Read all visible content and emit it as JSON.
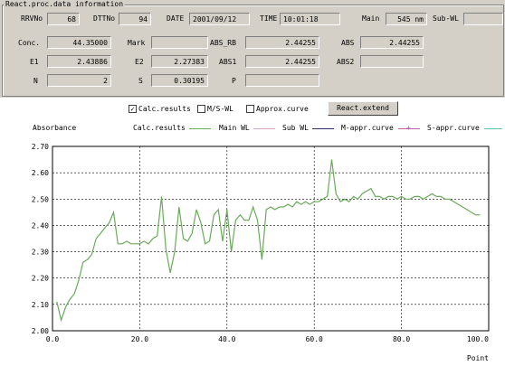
{
  "panel_title": "React.proc.data information",
  "fields": {
    "rrvno": {
      "label": "RRVNo",
      "value": "68"
    },
    "dttno": {
      "label": "DTTNo",
      "value": "94"
    },
    "date": {
      "label": "DATE",
      "value": "2001/09/12"
    },
    "time": {
      "label": "TIME",
      "value": "10:01:18"
    },
    "main": {
      "label": "Main",
      "value": "545 nm"
    },
    "subwl": {
      "label": "Sub-WL",
      "value": ""
    },
    "conc": {
      "label": "Conc.",
      "value": "44.35000"
    },
    "mark": {
      "label": "Mark",
      "value": ""
    },
    "abs_rb": {
      "label": "ABS_RB",
      "value": "2.44255"
    },
    "abs": {
      "label": "ABS",
      "value": "2.44255"
    },
    "e1": {
      "label": "E1",
      "value": "2.43886"
    },
    "e2": {
      "label": "E2",
      "value": "2.27383"
    },
    "abs1": {
      "label": "ABS1",
      "value": "2.44255"
    },
    "abs2": {
      "label": "ABS2",
      "value": ""
    },
    "n": {
      "label": "N",
      "value": "2"
    },
    "s": {
      "label": "S",
      "value": "0.30195"
    },
    "p": {
      "label": "P",
      "value": ""
    }
  },
  "options": {
    "calc_results": {
      "label": "Calc.results",
      "checked": true,
      "mark": "✓"
    },
    "ms_wl": {
      "label": "M/S-WL",
      "checked": false
    },
    "approx_curve": {
      "label": "Approx.curve",
      "checked": false
    },
    "react_extend": "React.extend"
  },
  "legend": {
    "ylabel": "Absorbance",
    "items": [
      {
        "label": "Calc.results",
        "color": "#6aaa5a"
      },
      {
        "label": "Main WL",
        "color": "#d8a8c8"
      },
      {
        "label": "Sub WL",
        "color": "#303070"
      },
      {
        "label": "M-appr.curve",
        "color": "#c060b0"
      },
      {
        "label": "S-appr.curve",
        "color": "#60c0b0"
      }
    ]
  },
  "chart_data": {
    "type": "line",
    "xlabel": "Point",
    "ylabel": "Absorbance",
    "xlim": [
      0,
      100
    ],
    "ylim": [
      2.0,
      2.7
    ],
    "xticks": [
      "0.0",
      "20.0",
      "40.0",
      "60.0",
      "80.0",
      "100.0"
    ],
    "yticks": [
      "2.00",
      "2.10",
      "2.20",
      "2.30",
      "2.40",
      "2.50",
      "2.60",
      "2.70"
    ],
    "grid": true,
    "series": [
      {
        "name": "Calc.results",
        "color": "#6aaa5a",
        "points": [
          [
            1,
            2.11
          ],
          [
            2,
            2.04
          ],
          [
            3,
            2.09
          ],
          [
            4,
            2.12
          ],
          [
            5,
            2.14
          ],
          [
            6,
            2.19
          ],
          [
            7,
            2.26
          ],
          [
            8,
            2.27
          ],
          [
            9,
            2.29
          ],
          [
            10,
            2.35
          ],
          [
            11,
            2.37
          ],
          [
            12,
            2.39
          ],
          [
            13,
            2.41
          ],
          [
            14,
            2.45
          ],
          [
            15,
            2.33
          ],
          [
            16,
            2.33
          ],
          [
            17,
            2.34
          ],
          [
            18,
            2.33
          ],
          [
            19,
            2.33
          ],
          [
            20,
            2.33
          ],
          [
            21,
            2.34
          ],
          [
            22,
            2.33
          ],
          [
            23,
            2.35
          ],
          [
            24,
            2.36
          ],
          [
            25,
            2.51
          ],
          [
            26,
            2.31
          ],
          [
            27,
            2.22
          ],
          [
            28,
            2.3
          ],
          [
            29,
            2.47
          ],
          [
            30,
            2.35
          ],
          [
            31,
            2.34
          ],
          [
            32,
            2.37
          ],
          [
            33,
            2.46
          ],
          [
            34,
            2.41
          ],
          [
            35,
            2.33
          ],
          [
            36,
            2.34
          ],
          [
            37,
            2.44
          ],
          [
            38,
            2.46
          ],
          [
            39,
            2.34
          ],
          [
            40,
            2.46
          ],
          [
            41,
            2.3
          ],
          [
            42,
            2.42
          ],
          [
            43,
            2.44
          ],
          [
            44,
            2.42
          ],
          [
            45,
            2.42
          ],
          [
            46,
            2.47
          ],
          [
            47,
            2.42
          ],
          [
            48,
            2.27
          ],
          [
            49,
            2.46
          ],
          [
            50,
            2.47
          ],
          [
            51,
            2.46
          ],
          [
            52,
            2.47
          ],
          [
            53,
            2.47
          ],
          [
            54,
            2.48
          ],
          [
            55,
            2.47
          ],
          [
            56,
            2.49
          ],
          [
            57,
            2.48
          ],
          [
            58,
            2.49
          ],
          [
            59,
            2.48
          ],
          [
            60,
            2.49
          ],
          [
            61,
            2.49
          ],
          [
            62,
            2.5
          ],
          [
            63,
            2.51
          ],
          [
            64,
            2.65
          ],
          [
            65,
            2.52
          ],
          [
            66,
            2.49
          ],
          [
            67,
            2.5
          ],
          [
            68,
            2.49
          ],
          [
            69,
            2.51
          ],
          [
            70,
            2.5
          ],
          [
            71,
            2.52
          ],
          [
            72,
            2.53
          ],
          [
            73,
            2.54
          ],
          [
            74,
            2.51
          ],
          [
            75,
            2.51
          ],
          [
            76,
            2.5
          ],
          [
            77,
            2.51
          ],
          [
            78,
            2.51
          ],
          [
            79,
            2.5
          ],
          [
            80,
            2.51
          ],
          [
            81,
            2.5
          ],
          [
            82,
            2.5
          ],
          [
            83,
            2.51
          ],
          [
            84,
            2.51
          ],
          [
            85,
            2.5
          ],
          [
            86,
            2.51
          ],
          [
            87,
            2.52
          ],
          [
            88,
            2.51
          ],
          [
            89,
            2.51
          ],
          [
            90,
            2.5
          ],
          [
            91,
            2.5
          ],
          [
            92,
            2.49
          ],
          [
            93,
            2.48
          ],
          [
            94,
            2.47
          ],
          [
            95,
            2.46
          ],
          [
            96,
            2.45
          ],
          [
            97,
            2.44
          ],
          [
            98,
            2.44
          ]
        ]
      }
    ]
  }
}
